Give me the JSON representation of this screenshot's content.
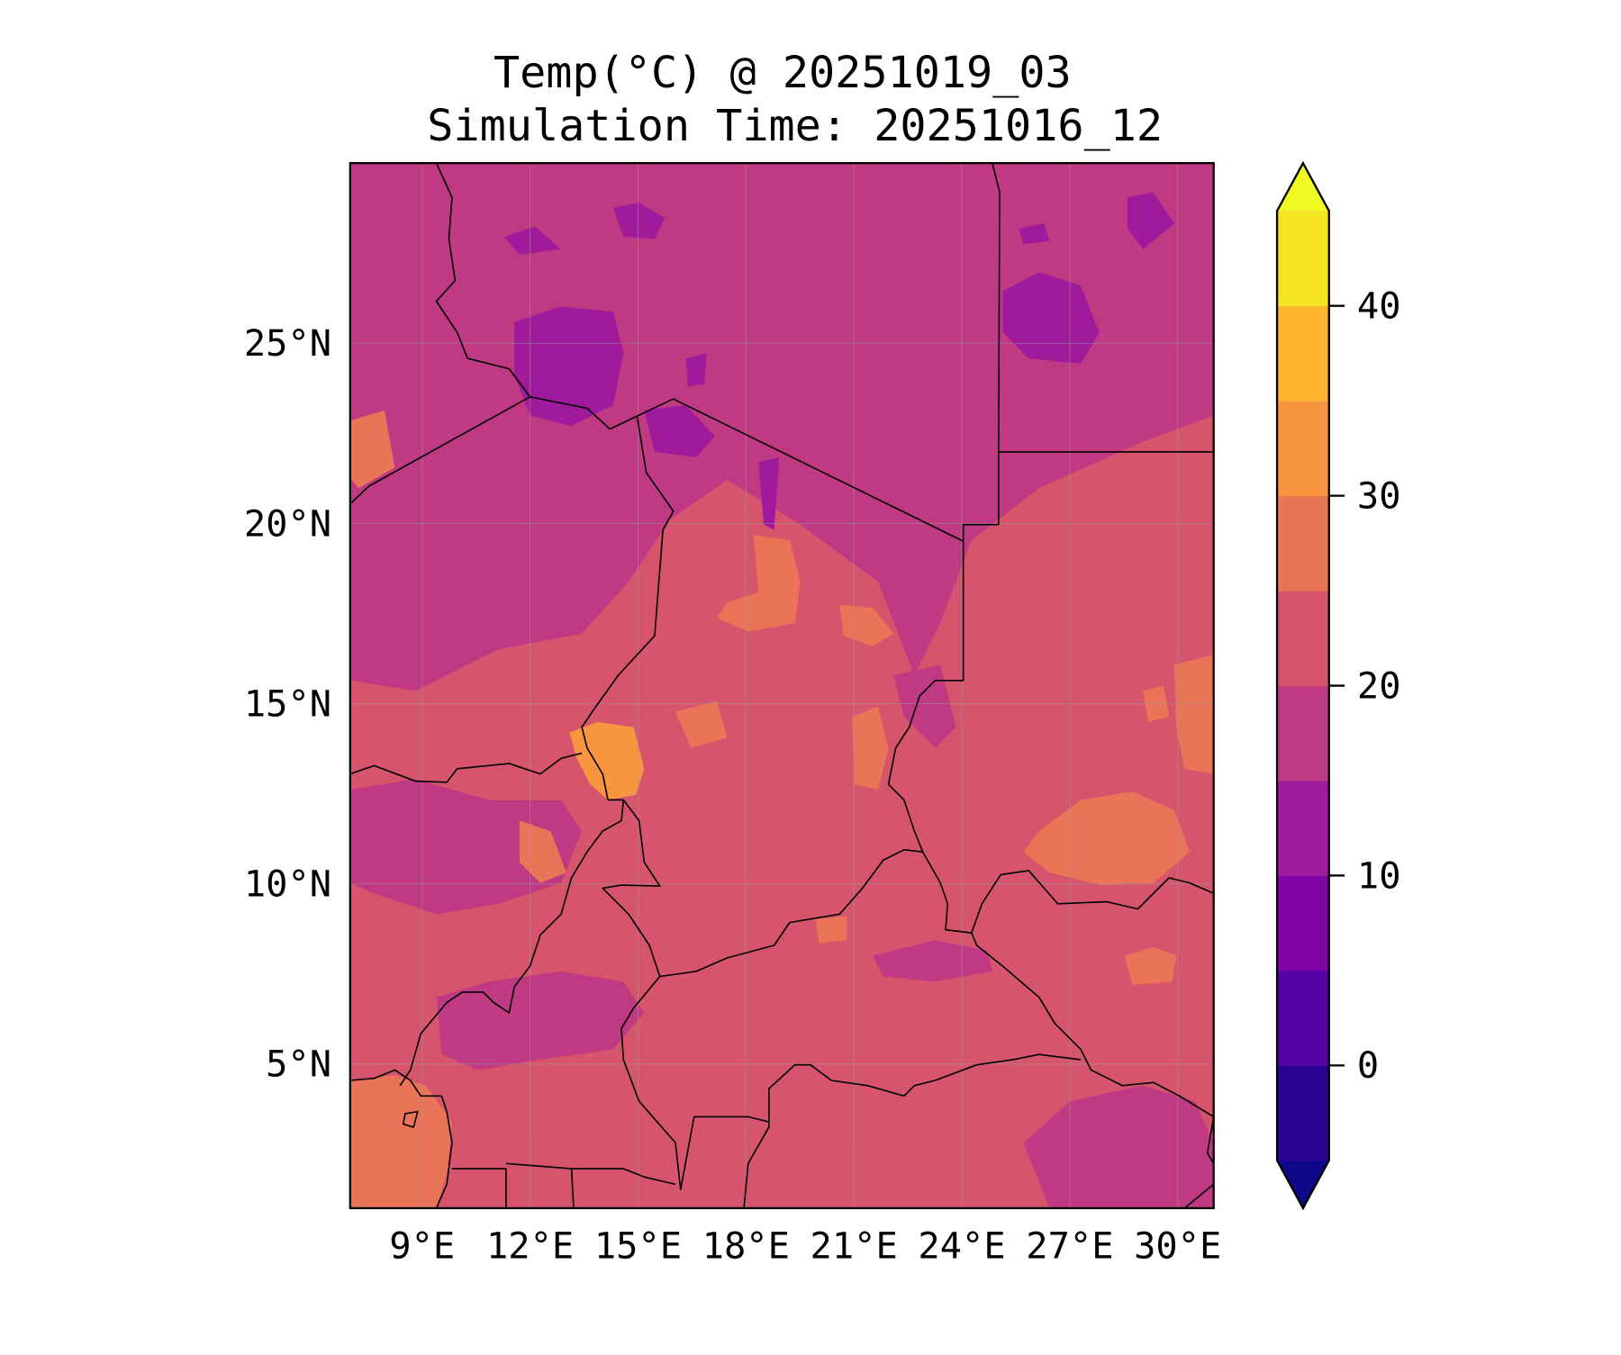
{
  "chart_data": {
    "type": "heatmap",
    "subtype": "filled contour map",
    "title": "Temp(°C) @ 20251019_03",
    "subtitle": "Simulation Time: 20251016_12",
    "xlabel": "",
    "ylabel": "",
    "xlim": [
      7,
      31
    ],
    "ylim": [
      1,
      30
    ],
    "x_ticks": [
      {
        "value": 9,
        "label": "9°E"
      },
      {
        "value": 12,
        "label": "12°E"
      },
      {
        "value": 15,
        "label": "15°E"
      },
      {
        "value": 18,
        "label": "18°E"
      },
      {
        "value": 21,
        "label": "21°E"
      },
      {
        "value": 24,
        "label": "24°E"
      },
      {
        "value": 27,
        "label": "27°E"
      },
      {
        "value": 30,
        "label": "30°E"
      }
    ],
    "y_ticks": [
      {
        "value": 5,
        "label": "5°N"
      },
      {
        "value": 10,
        "label": "10°N"
      },
      {
        "value": 15,
        "label": "15°N"
      },
      {
        "value": 20,
        "label": "20°N"
      },
      {
        "value": 25,
        "label": "25°N"
      }
    ],
    "grid": true,
    "colorbar": {
      "placement": "right",
      "extend": "both",
      "levels": [
        -5,
        0,
        5,
        10,
        15,
        20,
        25,
        30,
        35,
        40,
        45
      ],
      "colors": [
        "#2a0593",
        "#5402a3",
        "#8004a8",
        "#a01a9c",
        "#c03a83",
        "#d6556d",
        "#ea7457",
        "#f89540",
        "#fdb42f",
        "#f5e424"
      ],
      "under_color": "#0d0887",
      "over_color": "#f0f921",
      "ticks": [
        {
          "value": 0,
          "label": "0"
        },
        {
          "value": 10,
          "label": "10"
        },
        {
          "value": 20,
          "label": "20"
        },
        {
          "value": 30,
          "label": "30"
        },
        {
          "value": 40,
          "label": "40"
        }
      ]
    },
    "summary": {
      "dominant_north_band": "15-20",
      "dominant_south_band": "20-25",
      "max_band_near_lake_chad": "30-35",
      "min_band": "10-15"
    }
  }
}
